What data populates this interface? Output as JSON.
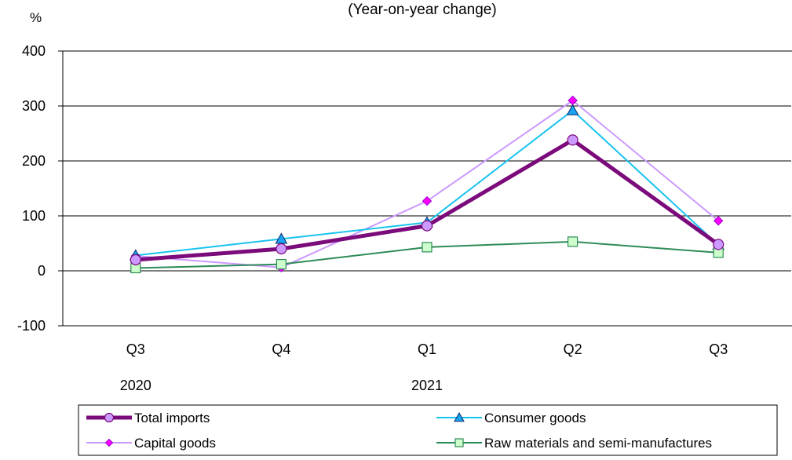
{
  "chart_data": {
    "type": "line",
    "title": "(Year-on-year change)",
    "ylabel": "%",
    "ylim": [
      -100,
      400
    ],
    "yticks": [
      -100,
      0,
      100,
      200,
      300,
      400
    ],
    "categories": [
      "Q3",
      "Q4",
      "Q1",
      "Q2",
      "Q3"
    ],
    "year_labels": [
      {
        "text": "2020",
        "index": 0
      },
      {
        "text": "2021",
        "index": 2
      }
    ],
    "grid": true,
    "legend_position": "bottom",
    "series": [
      {
        "name": "Total imports",
        "values": [
          20,
          40,
          82,
          238,
          48
        ],
        "color": "#7b0a7b",
        "marker": "circle",
        "marker_fill": "#cc99ff",
        "width": 5
      },
      {
        "name": "Consumer goods",
        "values": [
          28,
          58,
          88,
          292,
          47
        ],
        "color": "#19c3ee",
        "marker": "triangle",
        "marker_fill": "#19a3f0",
        "width": 2
      },
      {
        "name": "Capital goods",
        "values": [
          27,
          6,
          127,
          310,
          91
        ],
        "color": "#cc99ff",
        "marker": "diamond",
        "marker_fill": "#ff00ff",
        "width": 2
      },
      {
        "name": "Raw materials and semi-manufactures",
        "values": [
          5,
          12,
          43,
          53,
          33
        ],
        "color": "#2e8b57",
        "marker": "square",
        "marker_fill": "#ccffcc",
        "width": 2
      }
    ]
  }
}
